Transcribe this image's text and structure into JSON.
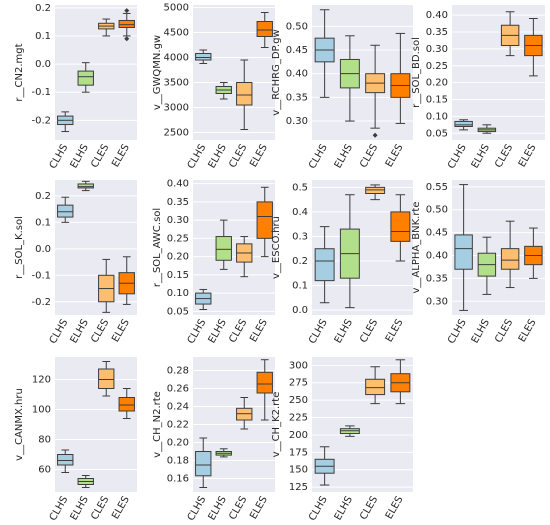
{
  "chart_data": [
    {
      "type": "box",
      "ylabel": "r__CN2.mgt",
      "categories": [
        "CLHS",
        "ELHS",
        "CLES",
        "ELES"
      ],
      "colors": [
        "#a6cee3",
        "#b2df8a",
        "#fdbf6f",
        "#ff7f00"
      ],
      "ylim": [
        -0.27,
        0.21
      ],
      "yticks": [
        -0.2,
        -0.1,
        {
          "value": 0,
          "label": "0.0"
        },
        0.1,
        0.2
      ],
      "boxes": [
        {
          "low": -0.24,
          "q1": -0.215,
          "median": -0.2,
          "q3": -0.185,
          "high": -0.17
        },
        {
          "low": -0.1,
          "q1": -0.075,
          "median": -0.045,
          "q3": -0.025,
          "high": 0.005
        },
        {
          "low": 0.1,
          "q1": 0.125,
          "median": 0.135,
          "q3": 0.145,
          "high": 0.16
        },
        {
          "low": 0.1,
          "q1": 0.13,
          "median": 0.14,
          "q3": 0.155,
          "high": 0.18,
          "outliers": [
            0.19,
            0.09
          ]
        }
      ]
    },
    {
      "type": "box",
      "ylabel": "v__GWQMN.gw",
      "categories": [
        "CLHS",
        "ELHS",
        "CLES",
        "ELES"
      ],
      "colors": [
        "#a6cee3",
        "#b2df8a",
        "#fdbf6f",
        "#ff7f00"
      ],
      "ylim": [
        2350,
        5050
      ],
      "yticks": [
        2500,
        3000,
        3500,
        4000,
        4500,
        5000
      ],
      "boxes": [
        {
          "low": 3880,
          "q1": 3950,
          "median": 4000,
          "q3": 4080,
          "high": 4150
        },
        {
          "low": 3170,
          "q1": 3280,
          "median": 3350,
          "q3": 3420,
          "high": 3500
        },
        {
          "low": 2560,
          "q1": 3050,
          "median": 3250,
          "q3": 3500,
          "high": 3950
        },
        {
          "low": 4200,
          "q1": 4420,
          "median": 4550,
          "q3": 4720,
          "high": 4900
        }
      ]
    },
    {
      "type": "box",
      "ylabel": "v__RCHRG_DP.gw",
      "categories": [
        "CLHS",
        "ELHS",
        "CLES",
        "ELES"
      ],
      "colors": [
        "#a6cee3",
        "#b2df8a",
        "#fdbf6f",
        "#ff7f00"
      ],
      "ylim": [
        0.26,
        0.545
      ],
      "yticks": [
        {
          "value": 0.3,
          "label": "0.30"
        },
        0.35,
        {
          "value": 0.4,
          "label": "0.40"
        },
        0.45,
        {
          "value": 0.5,
          "label": "0.50"
        }
      ],
      "boxes": [
        {
          "low": 0.35,
          "q1": 0.425,
          "median": 0.45,
          "q3": 0.475,
          "high": 0.535
        },
        {
          "low": 0.3,
          "q1": 0.37,
          "median": 0.4,
          "q3": 0.43,
          "high": 0.48
        },
        {
          "low": 0.285,
          "q1": 0.36,
          "median": 0.38,
          "q3": 0.4,
          "high": 0.46,
          "outliers": [
            0.27
          ]
        },
        {
          "low": 0.295,
          "q1": 0.35,
          "median": 0.375,
          "q3": 0.4,
          "high": 0.485
        }
      ]
    },
    {
      "type": "box",
      "ylabel": "r__SOL_BD.sol",
      "categories": [
        "CLHS",
        "ELHS",
        "CLES",
        "ELES"
      ],
      "colors": [
        "#a6cee3",
        "#b2df8a",
        "#fdbf6f",
        "#ff7f00"
      ],
      "ylim": [
        0.03,
        0.43
      ],
      "yticks": [
        0.05,
        {
          "value": 0.1,
          "label": "0.10"
        },
        0.15,
        {
          "value": 0.2,
          "label": "0.20"
        },
        0.25,
        {
          "value": 0.3,
          "label": "0.30"
        },
        0.35,
        {
          "value": 0.4,
          "label": "0.40"
        }
      ],
      "boxes": [
        {
          "low": 0.06,
          "q1": 0.07,
          "median": 0.075,
          "q3": 0.085,
          "high": 0.09
        },
        {
          "low": 0.05,
          "q1": 0.055,
          "median": 0.06,
          "q3": 0.065,
          "high": 0.075
        },
        {
          "low": 0.28,
          "q1": 0.31,
          "median": 0.34,
          "q3": 0.37,
          "high": 0.41
        },
        {
          "low": 0.22,
          "q1": 0.28,
          "median": 0.31,
          "q3": 0.34,
          "high": 0.39
        }
      ]
    },
    {
      "type": "box",
      "ylabel": "r__SOL_K.sol",
      "categories": [
        "CLHS",
        "ELHS",
        "CLES",
        "ELES"
      ],
      "colors": [
        "#a6cee3",
        "#b2df8a",
        "#fdbf6f",
        "#ff7f00"
      ],
      "ylim": [
        -0.25,
        0.26
      ],
      "yticks": [
        -0.2,
        -0.1,
        {
          "value": 0,
          "label": "0.0"
        },
        0.1,
        0.2
      ],
      "boxes": [
        {
          "low": 0.1,
          "q1": 0.12,
          "median": 0.14,
          "q3": 0.165,
          "high": 0.195
        },
        {
          "low": 0.22,
          "q1": 0.23,
          "median": 0.235,
          "q3": 0.245,
          "high": 0.255
        },
        {
          "low": -0.24,
          "q1": -0.2,
          "median": -0.15,
          "q3": -0.1,
          "high": -0.04
        },
        {
          "low": -0.21,
          "q1": -0.17,
          "median": -0.13,
          "q3": -0.09,
          "high": -0.03
        }
      ]
    },
    {
      "type": "box",
      "ylabel": "r__SOL_AWC.sol",
      "categories": [
        "CLHS",
        "ELHS",
        "CLES",
        "ELES"
      ],
      "colors": [
        "#a6cee3",
        "#b2df8a",
        "#fdbf6f",
        "#ff7f00"
      ],
      "ylim": [
        0.04,
        0.41
      ],
      "yticks": [
        0.05,
        {
          "value": 0.1,
          "label": "0.10"
        },
        0.15,
        {
          "value": 0.2,
          "label": "0.20"
        },
        0.25,
        {
          "value": 0.3,
          "label": "0.30"
        },
        0.35,
        {
          "value": 0.4,
          "label": "0.40"
        }
      ],
      "boxes": [
        {
          "low": 0.055,
          "q1": 0.07,
          "median": 0.085,
          "q3": 0.1,
          "high": 0.11
        },
        {
          "low": 0.165,
          "q1": 0.19,
          "median": 0.22,
          "q3": 0.255,
          "high": 0.3
        },
        {
          "low": 0.145,
          "q1": 0.185,
          "median": 0.21,
          "q3": 0.235,
          "high": 0.255
        },
        {
          "low": 0.2,
          "q1": 0.25,
          "median": 0.31,
          "q3": 0.35,
          "high": 0.39
        }
      ]
    },
    {
      "type": "box",
      "ylabel": "v__ESCO.hru",
      "categories": [
        "CLHS",
        "ELHS",
        "CLES",
        "ELES"
      ],
      "colors": [
        "#a6cee3",
        "#b2df8a",
        "#fdbf6f",
        "#ff7f00"
      ],
      "ylim": [
        -0.02,
        0.53
      ],
      "yticks": [
        {
          "value": 0,
          "label": "0.0"
        },
        0.1,
        0.2,
        0.3,
        0.4,
        0.5
      ],
      "boxes": [
        {
          "low": 0.03,
          "q1": 0.12,
          "median": 0.2,
          "q3": 0.25,
          "high": 0.34
        },
        {
          "low": 0.01,
          "q1": 0.13,
          "median": 0.23,
          "q3": 0.33,
          "high": 0.47
        },
        {
          "low": 0.45,
          "q1": 0.475,
          "median": 0.49,
          "q3": 0.5,
          "high": 0.51
        },
        {
          "low": 0.2,
          "q1": 0.28,
          "median": 0.32,
          "q3": 0.4,
          "high": 0.47
        }
      ]
    },
    {
      "type": "box",
      "ylabel": "v__ALPHA_BNK.rte",
      "categories": [
        "CLHS",
        "ELHS",
        "CLES",
        "ELES"
      ],
      "colors": [
        "#a6cee3",
        "#b2df8a",
        "#fdbf6f",
        "#ff7f00"
      ],
      "ylim": [
        0.27,
        0.565
      ],
      "yticks": [
        {
          "value": 0.3,
          "label": "0.30"
        },
        0.35,
        {
          "value": 0.4,
          "label": "0.40"
        },
        0.45,
        {
          "value": 0.5,
          "label": "0.50"
        },
        0.55
      ],
      "boxes": [
        {
          "low": 0.28,
          "q1": 0.37,
          "median": 0.415,
          "q3": 0.445,
          "high": 0.555
        },
        {
          "low": 0.315,
          "q1": 0.355,
          "median": 0.38,
          "q3": 0.405,
          "high": 0.44
        },
        {
          "low": 0.33,
          "q1": 0.37,
          "median": 0.39,
          "q3": 0.415,
          "high": 0.475
        },
        {
          "low": 0.35,
          "q1": 0.38,
          "median": 0.4,
          "q3": 0.42,
          "high": 0.46
        }
      ]
    },
    {
      "type": "box",
      "ylabel": "v__CANMX.hru",
      "categories": [
        "CLHS",
        "ELHS",
        "CLES",
        "ELES"
      ],
      "colors": [
        "#a6cee3",
        "#b2df8a",
        "#fdbf6f",
        "#ff7f00"
      ],
      "ylim": [
        45,
        135
      ],
      "yticks": [
        60,
        80,
        100,
        120
      ],
      "boxes": [
        {
          "low": 58,
          "q1": 63,
          "median": 66,
          "q3": 70,
          "high": 73
        },
        {
          "low": 48,
          "q1": 50,
          "median": 52,
          "q3": 54,
          "high": 56
        },
        {
          "low": 109,
          "q1": 114,
          "median": 120,
          "q3": 127,
          "high": 132
        },
        {
          "low": 94,
          "q1": 99,
          "median": 103,
          "q3": 108,
          "high": 114
        }
      ]
    },
    {
      "type": "box",
      "ylabel": "v__CH_N2.rte",
      "categories": [
        "CLHS",
        "ELHS",
        "CLES",
        "ELES"
      ],
      "colors": [
        "#a6cee3",
        "#b2df8a",
        "#fdbf6f",
        "#ff7f00"
      ],
      "ylim": [
        0.145,
        0.295
      ],
      "yticks": [
        0.16,
        0.18,
        {
          "value": 0.2,
          "label": "0.20"
        },
        0.22,
        0.24,
        0.26,
        0.28
      ],
      "boxes": [
        {
          "low": 0.15,
          "q1": 0.163,
          "median": 0.175,
          "q3": 0.19,
          "high": 0.205
        },
        {
          "low": 0.184,
          "q1": 0.186,
          "median": 0.188,
          "q3": 0.19,
          "high": 0.193
        },
        {
          "low": 0.215,
          "q1": 0.225,
          "median": 0.232,
          "q3": 0.238,
          "high": 0.25
        },
        {
          "low": 0.225,
          "q1": 0.255,
          "median": 0.265,
          "q3": 0.278,
          "high": 0.292
        }
      ]
    },
    {
      "type": "box",
      "ylabel": "v__CH_K2.rte",
      "categories": [
        "CLHS",
        "ELHS",
        "CLES",
        "ELES"
      ],
      "colors": [
        "#a6cee3",
        "#b2df8a",
        "#fdbf6f",
        "#ff7f00"
      ],
      "ylim": [
        118,
        312
      ],
      "yticks": [
        125,
        150,
        175,
        200,
        225,
        250,
        275,
        300
      ],
      "boxes": [
        {
          "low": 128,
          "q1": 145,
          "median": 155,
          "q3": 165,
          "high": 183
        },
        {
          "low": 198,
          "q1": 202,
          "median": 206,
          "q3": 209,
          "high": 213
        },
        {
          "low": 245,
          "q1": 258,
          "median": 268,
          "q3": 280,
          "high": 298
        },
        {
          "low": 245,
          "q1": 262,
          "median": 275,
          "q3": 288,
          "high": 308
        }
      ]
    }
  ]
}
